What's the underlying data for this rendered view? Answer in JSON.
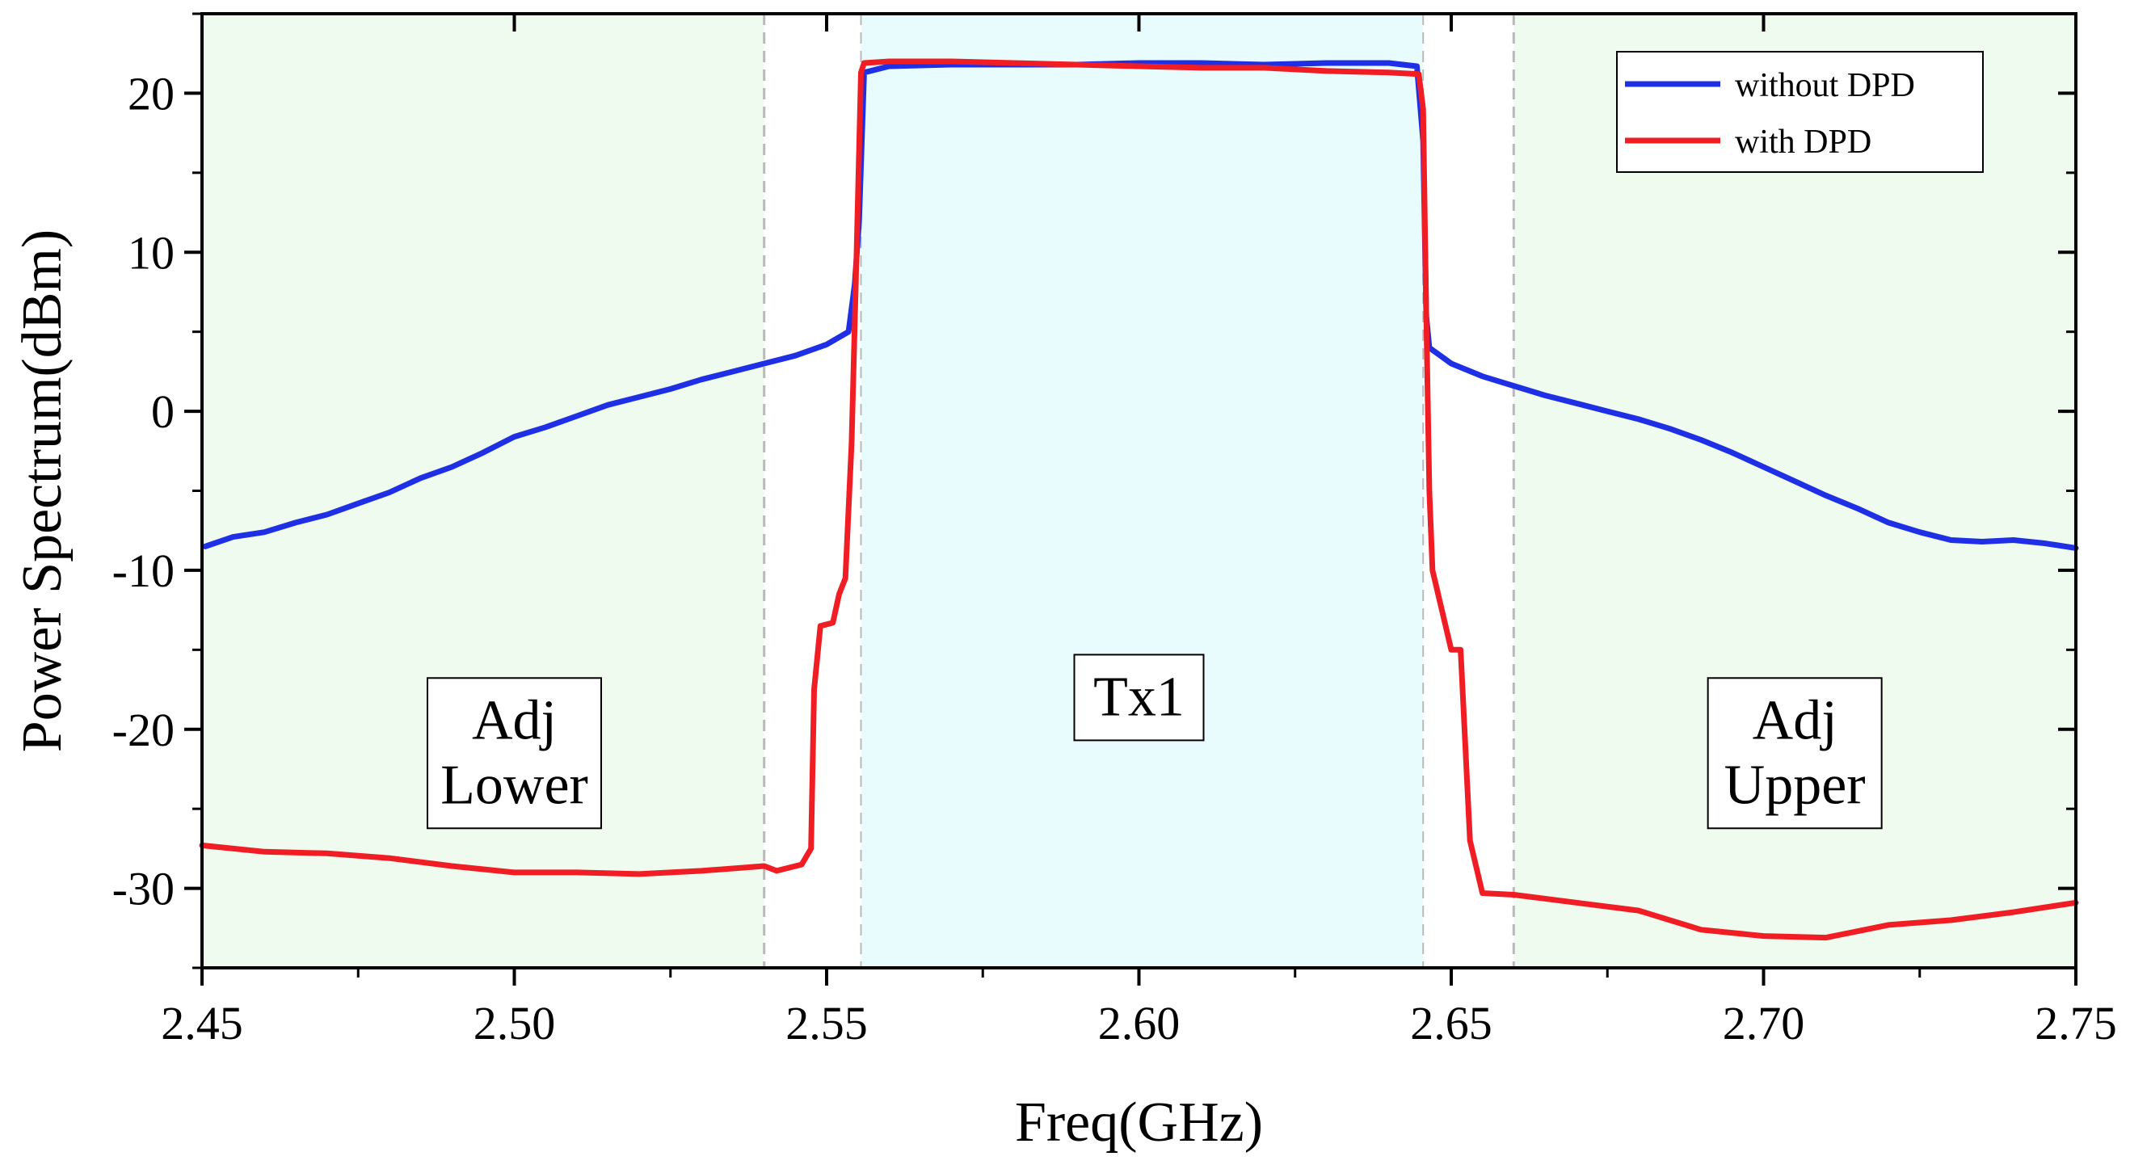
{
  "chart_data": {
    "type": "line",
    "xlabel": "Freq(GHz)",
    "ylabel": "Power Spectrum(dBm)",
    "xlim": [
      2.45,
      2.75
    ],
    "ylim": [
      -35,
      25
    ],
    "x_ticks": [
      2.45,
      2.5,
      2.55,
      2.6,
      2.65,
      2.7,
      2.75
    ],
    "x_tick_labels": [
      "2.45",
      "2.50",
      "2.55",
      "2.60",
      "2.65",
      "2.70",
      "2.75"
    ],
    "y_ticks": [
      -30,
      -20,
      -10,
      0,
      10,
      20
    ],
    "y_tick_labels": [
      "-30",
      "-20",
      "-10",
      "0",
      "10",
      "20"
    ],
    "legend_position": "top-right",
    "regions": [
      {
        "name": "adj-lower",
        "label_lines": [
          "Adj",
          "Lower"
        ],
        "x_range": [
          2.45,
          2.54
        ],
        "fill": "#effbee",
        "label_x": 2.5,
        "label_y": -21.5
      },
      {
        "name": "tx1",
        "label_lines": [
          "Tx1"
        ],
        "x_range": [
          2.5555,
          2.6455
        ],
        "fill": "#e8fcfd",
        "label_x": 2.6,
        "label_y": -18
      },
      {
        "name": "adj-upper",
        "label_lines": [
          "Adj",
          "Upper"
        ],
        "x_range": [
          2.66,
          2.75
        ],
        "fill": "#effbee",
        "label_x": 2.705,
        "label_y": -21.5
      }
    ],
    "boundaries": [
      2.54,
      2.5555,
      2.6455,
      2.66
    ],
    "series": [
      {
        "name": "without DPD",
        "color": "#1f2fe6",
        "points": [
          [
            2.4505,
            -8.5
          ],
          [
            2.455,
            -7.9
          ],
          [
            2.46,
            -7.6
          ],
          [
            2.465,
            -7.0
          ],
          [
            2.47,
            -6.5
          ],
          [
            2.475,
            -5.8
          ],
          [
            2.48,
            -5.1
          ],
          [
            2.485,
            -4.2
          ],
          [
            2.49,
            -3.5
          ],
          [
            2.495,
            -2.6
          ],
          [
            2.5,
            -1.6
          ],
          [
            2.505,
            -1.0
          ],
          [
            2.51,
            -0.3
          ],
          [
            2.515,
            0.4
          ],
          [
            2.52,
            0.9
          ],
          [
            2.525,
            1.4
          ],
          [
            2.53,
            2.0
          ],
          [
            2.535,
            2.5
          ],
          [
            2.54,
            3.0
          ],
          [
            2.545,
            3.5
          ],
          [
            2.55,
            4.2
          ],
          [
            2.5535,
            5.0
          ],
          [
            2.5545,
            8.0
          ],
          [
            2.5552,
            12.0
          ],
          [
            2.556,
            21.3
          ],
          [
            2.56,
            21.7
          ],
          [
            2.57,
            21.8
          ],
          [
            2.58,
            21.8
          ],
          [
            2.59,
            21.8
          ],
          [
            2.6,
            21.9
          ],
          [
            2.61,
            21.9
          ],
          [
            2.62,
            21.8
          ],
          [
            2.63,
            21.9
          ],
          [
            2.64,
            21.9
          ],
          [
            2.6445,
            21.7
          ],
          [
            2.6455,
            17.0
          ],
          [
            2.646,
            6.0
          ],
          [
            2.6465,
            4.0
          ],
          [
            2.65,
            3.0
          ],
          [
            2.655,
            2.2
          ],
          [
            2.66,
            1.6
          ],
          [
            2.665,
            1.0
          ],
          [
            2.67,
            0.5
          ],
          [
            2.675,
            0.0
          ],
          [
            2.68,
            -0.5
          ],
          [
            2.685,
            -1.1
          ],
          [
            2.69,
            -1.8
          ],
          [
            2.695,
            -2.6
          ],
          [
            2.7,
            -3.5
          ],
          [
            2.705,
            -4.4
          ],
          [
            2.71,
            -5.3
          ],
          [
            2.715,
            -6.1
          ],
          [
            2.72,
            -7.0
          ],
          [
            2.725,
            -7.6
          ],
          [
            2.73,
            -8.1
          ],
          [
            2.735,
            -8.2
          ],
          [
            2.74,
            -8.1
          ],
          [
            2.745,
            -8.3
          ],
          [
            2.75,
            -8.6
          ]
        ]
      },
      {
        "name": "with DPD",
        "color": "#f01e24",
        "points": [
          [
            2.45,
            -27.3
          ],
          [
            2.46,
            -27.7
          ],
          [
            2.47,
            -27.8
          ],
          [
            2.48,
            -28.1
          ],
          [
            2.49,
            -28.6
          ],
          [
            2.5,
            -29.0
          ],
          [
            2.51,
            -29.0
          ],
          [
            2.52,
            -29.1
          ],
          [
            2.53,
            -28.9
          ],
          [
            2.54,
            -28.6
          ],
          [
            2.542,
            -28.9
          ],
          [
            2.546,
            -28.5
          ],
          [
            2.5475,
            -27.5
          ],
          [
            2.548,
            -17.5
          ],
          [
            2.549,
            -13.5
          ],
          [
            2.551,
            -13.3
          ],
          [
            2.552,
            -11.5
          ],
          [
            2.553,
            -10.5
          ],
          [
            2.554,
            -2.0
          ],
          [
            2.5548,
            10.0
          ],
          [
            2.5555,
            21.3
          ],
          [
            2.556,
            21.9
          ],
          [
            2.56,
            22.0
          ],
          [
            2.57,
            22.0
          ],
          [
            2.58,
            21.9
          ],
          [
            2.59,
            21.8
          ],
          [
            2.6,
            21.7
          ],
          [
            2.61,
            21.6
          ],
          [
            2.62,
            21.6
          ],
          [
            2.63,
            21.4
          ],
          [
            2.64,
            21.3
          ],
          [
            2.6448,
            21.2
          ],
          [
            2.6455,
            19.0
          ],
          [
            2.646,
            6.0
          ],
          [
            2.6465,
            -5.0
          ],
          [
            2.647,
            -10.0
          ],
          [
            2.65,
            -15.0
          ],
          [
            2.6515,
            -15.0
          ],
          [
            2.653,
            -27.0
          ],
          [
            2.655,
            -30.3
          ],
          [
            2.66,
            -30.4
          ],
          [
            2.67,
            -30.9
          ],
          [
            2.68,
            -31.4
          ],
          [
            2.69,
            -32.6
          ],
          [
            2.7,
            -33.0
          ],
          [
            2.71,
            -33.1
          ],
          [
            2.72,
            -32.3
          ],
          [
            2.73,
            -32.0
          ],
          [
            2.74,
            -31.5
          ],
          [
            2.75,
            -30.9
          ]
        ]
      }
    ]
  }
}
